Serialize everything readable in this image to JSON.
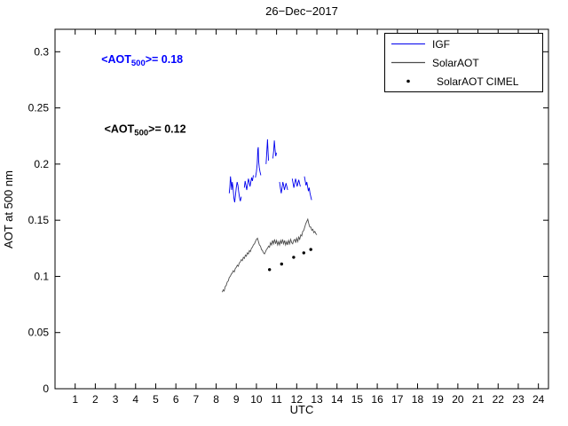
{
  "chart_data": {
    "type": "line",
    "title": "26−Dec−2017",
    "xlabel": "UTC",
    "ylabel": "AOT at 500 nm",
    "xlim": [
      0,
      24.5
    ],
    "ylim": [
      0,
      0.32
    ],
    "xticks": [
      1,
      2,
      3,
      4,
      5,
      6,
      7,
      8,
      9,
      10,
      11,
      12,
      13,
      14,
      15,
      16,
      17,
      18,
      19,
      20,
      21,
      22,
      23,
      24
    ],
    "yticks": [
      0,
      0.05,
      0.1,
      0.15,
      0.2,
      0.25,
      0.3
    ],
    "ytick_labels": [
      "0",
      "0.05",
      "0.1",
      "0.15",
      "0.2",
      "0.25",
      "0.3"
    ],
    "grid": false,
    "legend_position": "top-right",
    "series": [
      {
        "name": "IGF",
        "type": "line",
        "color": "#0000ee",
        "segments": [
          [
            [
              8.65,
              0.174
            ],
            [
              8.68,
              0.18
            ],
            [
              8.71,
              0.189
            ],
            [
              8.74,
              0.184
            ],
            [
              8.77,
              0.177
            ],
            [
              8.8,
              0.184
            ],
            [
              8.84,
              0.179
            ],
            [
              8.88,
              0.17
            ],
            [
              8.92,
              0.166
            ],
            [
              8.96,
              0.172
            ],
            [
              9.0,
              0.179
            ],
            [
              9.04,
              0.184
            ],
            [
              9.08,
              0.181
            ],
            [
              9.12,
              0.175
            ],
            [
              9.16,
              0.17
            ],
            [
              9.2,
              0.167
            ],
            [
              9.25,
              0.171
            ]
          ],
          [
            [
              9.4,
              0.179
            ],
            [
              9.44,
              0.185
            ],
            [
              9.48,
              0.181
            ],
            [
              9.52,
              0.177
            ],
            [
              9.56,
              0.182
            ],
            [
              9.6,
              0.187
            ],
            [
              9.64,
              0.184
            ],
            [
              9.68,
              0.18
            ],
            [
              9.72,
              0.184
            ],
            [
              9.76,
              0.188
            ],
            [
              9.8,
              0.185
            ],
            [
              9.85,
              0.19
            ]
          ],
          [
            [
              9.95,
              0.188
            ],
            [
              10.0,
              0.193
            ],
            [
              10.04,
              0.2
            ],
            [
              10.07,
              0.213
            ],
            [
              10.09,
              0.215
            ],
            [
              10.11,
              0.203
            ],
            [
              10.14,
              0.197
            ],
            [
              10.18,
              0.193
            ],
            [
              10.22,
              0.19
            ]
          ],
          [
            [
              10.48,
              0.2
            ],
            [
              10.52,
              0.212
            ],
            [
              10.55,
              0.222
            ],
            [
              10.58,
              0.21
            ],
            [
              10.6,
              0.203
            ]
          ],
          [
            [
              10.82,
              0.205
            ],
            [
              10.86,
              0.213
            ],
            [
              10.89,
              0.221
            ],
            [
              10.92,
              0.214
            ],
            [
              10.96,
              0.207
            ],
            [
              11.0,
              0.21
            ]
          ],
          [
            [
              11.15,
              0.184
            ],
            [
              11.19,
              0.179
            ],
            [
              11.23,
              0.174
            ],
            [
              11.27,
              0.179
            ],
            [
              11.31,
              0.184
            ],
            [
              11.35,
              0.181
            ],
            [
              11.39,
              0.177
            ],
            [
              11.43,
              0.18
            ],
            [
              11.47,
              0.183
            ],
            [
              11.51,
              0.18
            ],
            [
              11.55,
              0.177
            ]
          ],
          [
            [
              11.78,
              0.187
            ],
            [
              11.82,
              0.183
            ],
            [
              11.86,
              0.179
            ],
            [
              11.9,
              0.183
            ],
            [
              11.94,
              0.187
            ],
            [
              11.98,
              0.184
            ],
            [
              12.02,
              0.18
            ],
            [
              12.06,
              0.183
            ],
            [
              12.1,
              0.186
            ],
            [
              12.14,
              0.183
            ],
            [
              12.18,
              0.18
            ]
          ],
          [
            [
              12.38,
              0.189
            ],
            [
              12.42,
              0.185
            ],
            [
              12.46,
              0.181
            ],
            [
              12.5,
              0.184
            ],
            [
              12.54,
              0.18
            ],
            [
              12.58,
              0.176
            ],
            [
              12.62,
              0.179
            ],
            [
              12.66,
              0.174
            ],
            [
              12.7,
              0.171
            ],
            [
              12.74,
              0.168
            ]
          ]
        ],
        "mean_aot_500": 0.18
      },
      {
        "name": "SolarAOT",
        "type": "line",
        "color": "#4d4d4d",
        "points": [
          [
            8.3,
            0.086
          ],
          [
            8.35,
            0.088
          ],
          [
            8.4,
            0.087
          ],
          [
            8.45,
            0.091
          ],
          [
            8.5,
            0.092
          ],
          [
            8.55,
            0.095
          ],
          [
            8.6,
            0.096
          ],
          [
            8.65,
            0.099
          ],
          [
            8.7,
            0.1
          ],
          [
            8.75,
            0.102
          ],
          [
            8.8,
            0.103
          ],
          [
            8.85,
            0.105
          ],
          [
            8.9,
            0.104
          ],
          [
            8.95,
            0.107
          ],
          [
            9.0,
            0.108
          ],
          [
            9.05,
            0.11
          ],
          [
            9.1,
            0.109
          ],
          [
            9.15,
            0.112
          ],
          [
            9.2,
            0.113
          ],
          [
            9.25,
            0.115
          ],
          [
            9.3,
            0.114
          ],
          [
            9.35,
            0.117
          ],
          [
            9.4,
            0.116
          ],
          [
            9.45,
            0.119
          ],
          [
            9.5,
            0.118
          ],
          [
            9.55,
            0.121
          ],
          [
            9.6,
            0.12
          ],
          [
            9.65,
            0.123
          ],
          [
            9.7,
            0.122
          ],
          [
            9.75,
            0.125
          ],
          [
            9.8,
            0.126
          ],
          [
            9.85,
            0.128
          ],
          [
            9.9,
            0.129
          ],
          [
            9.95,
            0.131
          ],
          [
            10.0,
            0.133
          ],
          [
            10.05,
            0.134
          ],
          [
            10.1,
            0.131
          ],
          [
            10.15,
            0.128
          ],
          [
            10.2,
            0.127
          ],
          [
            10.25,
            0.124
          ],
          [
            10.3,
            0.123
          ],
          [
            10.35,
            0.121
          ],
          [
            10.4,
            0.12
          ],
          [
            10.45,
            0.122
          ],
          [
            10.5,
            0.124
          ],
          [
            10.55,
            0.125
          ],
          [
            10.6,
            0.127
          ],
          [
            10.65,
            0.126
          ],
          [
            10.7,
            0.13
          ],
          [
            10.75,
            0.128
          ],
          [
            10.8,
            0.132
          ],
          [
            10.85,
            0.129
          ],
          [
            10.9,
            0.133
          ],
          [
            10.95,
            0.129
          ],
          [
            11.0,
            0.132
          ],
          [
            11.05,
            0.128
          ],
          [
            11.1,
            0.131
          ],
          [
            11.15,
            0.128
          ],
          [
            11.2,
            0.132
          ],
          [
            11.25,
            0.129
          ],
          [
            11.3,
            0.133
          ],
          [
            11.35,
            0.129
          ],
          [
            11.4,
            0.132
          ],
          [
            11.45,
            0.128
          ],
          [
            11.5,
            0.131
          ],
          [
            11.55,
            0.128
          ],
          [
            11.6,
            0.132
          ],
          [
            11.65,
            0.129
          ],
          [
            11.7,
            0.133
          ],
          [
            11.75,
            0.13
          ],
          [
            11.8,
            0.129
          ],
          [
            11.85,
            0.132
          ],
          [
            11.9,
            0.133
          ],
          [
            11.95,
            0.13
          ],
          [
            12.0,
            0.134
          ],
          [
            12.05,
            0.131
          ],
          [
            12.1,
            0.135
          ],
          [
            12.15,
            0.133
          ],
          [
            12.2,
            0.137
          ],
          [
            12.25,
            0.136
          ],
          [
            12.3,
            0.14
          ],
          [
            12.35,
            0.141
          ],
          [
            12.4,
            0.144
          ],
          [
            12.45,
            0.147
          ],
          [
            12.5,
            0.149
          ],
          [
            12.55,
            0.151
          ],
          [
            12.6,
            0.147
          ],
          [
            12.65,
            0.144
          ],
          [
            12.7,
            0.144
          ],
          [
            12.75,
            0.141
          ],
          [
            12.8,
            0.142
          ],
          [
            12.85,
            0.139
          ],
          [
            12.9,
            0.14
          ],
          [
            12.95,
            0.138
          ],
          [
            13.0,
            0.137
          ]
        ],
        "mean_aot_500": 0.12
      },
      {
        "name": "SolarAOT CIMEL",
        "type": "scatter",
        "color": "#000000",
        "points": [
          [
            10.65,
            0.106
          ],
          [
            11.25,
            0.111
          ],
          [
            11.85,
            0.117
          ],
          [
            12.35,
            0.121
          ],
          [
            12.7,
            0.124
          ]
        ]
      }
    ],
    "annotations": [
      {
        "prefix": "<AOT",
        "sub": "500",
        "suffix": ">= 0.18",
        "color": "#0000ff",
        "x": 2.3,
        "y": 0.29
      },
      {
        "prefix": "<AOT",
        "sub": "500",
        "suffix": ">= 0.12",
        "color": "#000000",
        "x": 2.45,
        "y": 0.228
      }
    ]
  }
}
